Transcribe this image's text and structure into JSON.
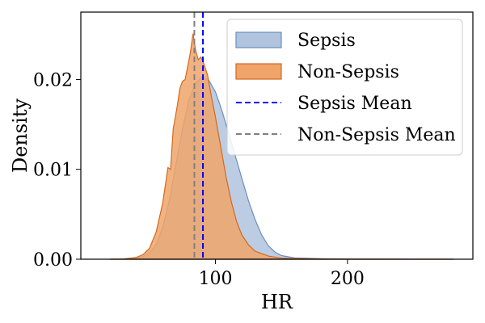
{
  "chart_data": {
    "type": "area",
    "title": "",
    "xlabel": "HR",
    "ylabel": "Density",
    "xlim": [
      -2,
      295
    ],
    "ylim": [
      0,
      0.0275
    ],
    "x_ticks": [
      100,
      200
    ],
    "x_tick_labels": [
      "100",
      "200"
    ],
    "y_ticks": [
      0,
      0.01,
      0.02
    ],
    "y_tick_labels": [
      "0.00",
      "0.01",
      "0.02"
    ],
    "grid": false,
    "legend_position": "top-right",
    "series": [
      {
        "name": "Sepsis",
        "kind": "density",
        "fill": "#b0c4de",
        "stroke": "#6c8ebf",
        "points": [
          [
            20,
            0
          ],
          [
            30,
            2e-05
          ],
          [
            40,
            0.0001
          ],
          [
            45,
            0.0003
          ],
          [
            50,
            0.0007
          ],
          [
            55,
            0.0016
          ],
          [
            60,
            0.0035
          ],
          [
            65,
            0.0065
          ],
          [
            70,
            0.0105
          ],
          [
            75,
            0.0145
          ],
          [
            80,
            0.0178
          ],
          [
            85,
            0.0196
          ],
          [
            90,
            0.0203
          ],
          [
            95,
            0.0199
          ],
          [
            100,
            0.0186
          ],
          [
            105,
            0.0165
          ],
          [
            110,
            0.014
          ],
          [
            115,
            0.0115
          ],
          [
            120,
            0.009
          ],
          [
            125,
            0.0065
          ],
          [
            130,
            0.0044
          ],
          [
            135,
            0.0027
          ],
          [
            140,
            0.0015
          ],
          [
            145,
            0.0008
          ],
          [
            150,
            0.0004
          ],
          [
            160,
            0.00015
          ],
          [
            180,
            5e-05
          ],
          [
            200,
            2e-05
          ],
          [
            240,
            1e-05
          ],
          [
            280,
            0
          ]
        ]
      },
      {
        "name": "Non-Sepsis",
        "kind": "density",
        "fill": "#f0a46a",
        "stroke": "#d2691e",
        "points": [
          [
            20,
            0
          ],
          [
            30,
            3e-05
          ],
          [
            40,
            0.0002
          ],
          [
            45,
            0.0005
          ],
          [
            50,
            0.0012
          ],
          [
            55,
            0.003
          ],
          [
            60,
            0.0062
          ],
          [
            64,
            0.0102
          ],
          [
            66,
            0.01
          ],
          [
            68,
            0.0145
          ],
          [
            71,
            0.017
          ],
          [
            73,
            0.019
          ],
          [
            75,
            0.0198
          ],
          [
            77,
            0.02
          ],
          [
            79,
            0.0215
          ],
          [
            81,
            0.023
          ],
          [
            83,
            0.0251
          ],
          [
            85,
            0.0232
          ],
          [
            87,
            0.0222
          ],
          [
            89,
            0.0225
          ],
          [
            91,
            0.0218
          ],
          [
            94,
            0.0205
          ],
          [
            97,
            0.018
          ],
          [
            100,
            0.0158
          ],
          [
            104,
            0.0125
          ],
          [
            108,
            0.0092
          ],
          [
            112,
            0.0064
          ],
          [
            116,
            0.0042
          ],
          [
            120,
            0.0027
          ],
          [
            125,
            0.0016
          ],
          [
            130,
            0.0009
          ],
          [
            140,
            0.00035
          ],
          [
            150,
            0.00012
          ],
          [
            170,
            4e-05
          ],
          [
            200,
            1e-05
          ],
          [
            280,
            0
          ]
        ]
      },
      {
        "name": "Sepsis Mean",
        "kind": "vline",
        "x": 90.5,
        "stroke": "#0000ff",
        "dash": "dashed"
      },
      {
        "name": "Non-Sepsis Mean",
        "kind": "vline",
        "x": 84,
        "stroke": "#808080",
        "dash": "dashed"
      }
    ],
    "legend": [
      {
        "label": "Sepsis",
        "kind": "patch",
        "fill": "#b0c4de",
        "stroke": "#6c8ebf"
      },
      {
        "label": "Non-Sepsis",
        "kind": "patch",
        "fill": "#f0a46a",
        "stroke": "#d2691e"
      },
      {
        "label": "Sepsis Mean",
        "kind": "line",
        "stroke": "#0000ff"
      },
      {
        "label": "Non-Sepsis Mean",
        "kind": "line",
        "stroke": "#808080"
      }
    ]
  }
}
